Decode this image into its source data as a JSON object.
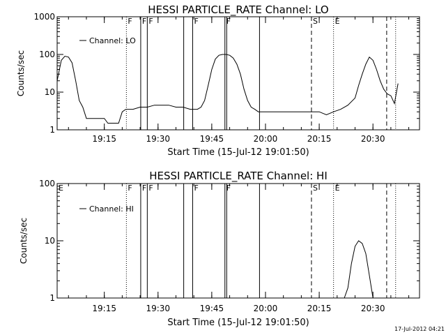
{
  "chart_data": [
    {
      "type": "line",
      "title": "HESSI PARTICLE_RATE Channel: LO",
      "xlabel": "Start Time (15-Jul-12 19:01:50)",
      "ylabel": "Counts/sec",
      "yscale": "log",
      "ylim": [
        1,
        1000
      ],
      "xlim": [
        "19:01:50",
        "20:43:00"
      ],
      "y_ticks": [
        {
          "v": 1,
          "label": "1"
        },
        {
          "v": 10,
          "label": "10"
        },
        {
          "v": 100,
          "label": "100"
        },
        {
          "v": 1000,
          "label": "1000"
        }
      ],
      "x_ticks": [
        "19:15",
        "19:30",
        "19:45",
        "20:00",
        "20:15",
        "20:30"
      ],
      "legend": {
        "label": "Channel: LO",
        "position": "top-left"
      },
      "series": [
        {
          "name": "Channel: LO",
          "x": [
            "19:01:50",
            "19:03:00",
            "19:04:00",
            "19:05:00",
            "19:06:00",
            "19:07:00",
            "19:08:00",
            "19:09:00",
            "19:10:00",
            "19:12:00",
            "19:13:00",
            "19:14:00",
            "19:15:00",
            "19:16:00",
            "19:17:00",
            "19:18:00",
            "19:19:00",
            "19:20:00",
            "19:21:00",
            "19:22:00",
            "19:23:00",
            "19:25:00",
            "19:27:00",
            "19:29:00",
            "19:31:00",
            "19:33:00",
            "19:35:00",
            "19:37:00",
            "19:39:00",
            "19:41:00",
            "19:42:00",
            "19:43:00",
            "19:44:00",
            "19:45:00",
            "19:46:00",
            "19:47:00",
            "19:48:00",
            "19:49:00",
            "19:50:00",
            "19:51:00",
            "19:52:00",
            "19:53:00",
            "19:54:00",
            "19:55:00",
            "19:56:00",
            "19:57:00",
            "19:58:00",
            "20:00:00",
            "20:05:00",
            "20:10:00",
            "20:13:00",
            "20:15:00",
            "20:17:00",
            "20:19:00",
            "20:21:00",
            "20:23:00",
            "20:25:00",
            "20:26:00",
            "20:27:00",
            "20:28:00",
            "20:29:00",
            "20:30:00",
            "20:31:00",
            "20:32:00",
            "20:33:00",
            "20:34:00",
            "20:35:00",
            "20:36:00",
            "20:37:00"
          ],
          "y": [
            20,
            70,
            90,
            85,
            60,
            20,
            6,
            4,
            2,
            2,
            2,
            2,
            2,
            1.5,
            1.5,
            1.5,
            1.5,
            3,
            3.5,
            3.5,
            3.5,
            4,
            4,
            4.5,
            4.5,
            4.5,
            4,
            4,
            3.5,
            3.5,
            4,
            6,
            15,
            40,
            75,
            95,
            100,
            100,
            95,
            80,
            55,
            30,
            12,
            6,
            4,
            3.5,
            3,
            3,
            3,
            3,
            3,
            3,
            2.5,
            3,
            3.5,
            4.5,
            7,
            15,
            30,
            55,
            85,
            70,
            40,
            20,
            12,
            9,
            8,
            5,
            17
          ]
        }
      ],
      "vlines": [
        {
          "time": "19:21:10",
          "style": "dotted",
          "label": "F"
        },
        {
          "time": "19:25:10",
          "style": "solid",
          "label": "F"
        },
        {
          "time": "19:27:00",
          "style": "solid",
          "label": "F"
        },
        {
          "time": "19:37:10",
          "style": "solid",
          "label": ""
        },
        {
          "time": "19:39:40",
          "style": "solid",
          "label": "F"
        },
        {
          "time": "19:48:40",
          "style": "solid",
          "label": "F"
        },
        {
          "time": "19:49:10",
          "style": "solid",
          "label": ""
        },
        {
          "time": "19:58:20",
          "style": "solid",
          "label": ""
        },
        {
          "time": "20:12:50",
          "style": "dashed",
          "label": "S"
        },
        {
          "time": "20:19:00",
          "style": "dotted",
          "label": "E"
        },
        {
          "time": "20:33:50",
          "style": "dashed",
          "label": ""
        },
        {
          "time": "20:36:20",
          "style": "dotted",
          "label": ""
        }
      ]
    },
    {
      "type": "line",
      "title": "HESSI PARTICLE_RATE Channel: HI",
      "xlabel": "Start Time (15-Jul-12 19:01:50)",
      "ylabel": "Counts/sec",
      "yscale": "log",
      "ylim": [
        1,
        100
      ],
      "xlim": [
        "19:01:50",
        "20:43:00"
      ],
      "y_ticks": [
        {
          "v": 1,
          "label": "1"
        },
        {
          "v": 10,
          "label": "10"
        },
        {
          "v": 100,
          "label": "100"
        }
      ],
      "x_ticks": [
        "19:15",
        "19:30",
        "19:45",
        "20:00",
        "20:15",
        "20:30"
      ],
      "legend": {
        "label": "Channel: HI",
        "position": "top-left"
      },
      "series": [
        {
          "name": "Channel: HI",
          "x": [
            "20:22:00",
            "20:23:00",
            "20:24:00",
            "20:25:00",
            "20:26:00",
            "20:27:00",
            "20:28:00",
            "20:29:00",
            "20:30:00"
          ],
          "y": [
            1,
            1.5,
            4,
            8,
            10,
            9,
            6,
            2.5,
            1
          ]
        }
      ],
      "vlines": [
        {
          "time": "19:21:10",
          "style": "dotted",
          "label": "F"
        },
        {
          "time": "19:25:10",
          "style": "solid",
          "label": "F"
        },
        {
          "time": "19:27:00",
          "style": "solid",
          "label": "F"
        },
        {
          "time": "19:37:10",
          "style": "solid",
          "label": ""
        },
        {
          "time": "19:39:40",
          "style": "solid",
          "label": "F"
        },
        {
          "time": "19:48:40",
          "style": "solid",
          "label": "F"
        },
        {
          "time": "19:49:10",
          "style": "solid",
          "label": ""
        },
        {
          "time": "19:58:20",
          "style": "solid",
          "label": ""
        },
        {
          "time": "20:12:50",
          "style": "dashed",
          "label": "S"
        },
        {
          "time": "20:19:00",
          "style": "dotted",
          "label": "E"
        },
        {
          "time": "20:33:50",
          "style": "dashed",
          "label": ""
        },
        {
          "time": "20:36:20",
          "style": "dotted",
          "label": ""
        }
      ],
      "panel_labels": [
        {
          "time": "19:01:50",
          "label": "E"
        }
      ]
    }
  ],
  "footer": {
    "timestamp": "17-Jul-2012 04:21"
  }
}
